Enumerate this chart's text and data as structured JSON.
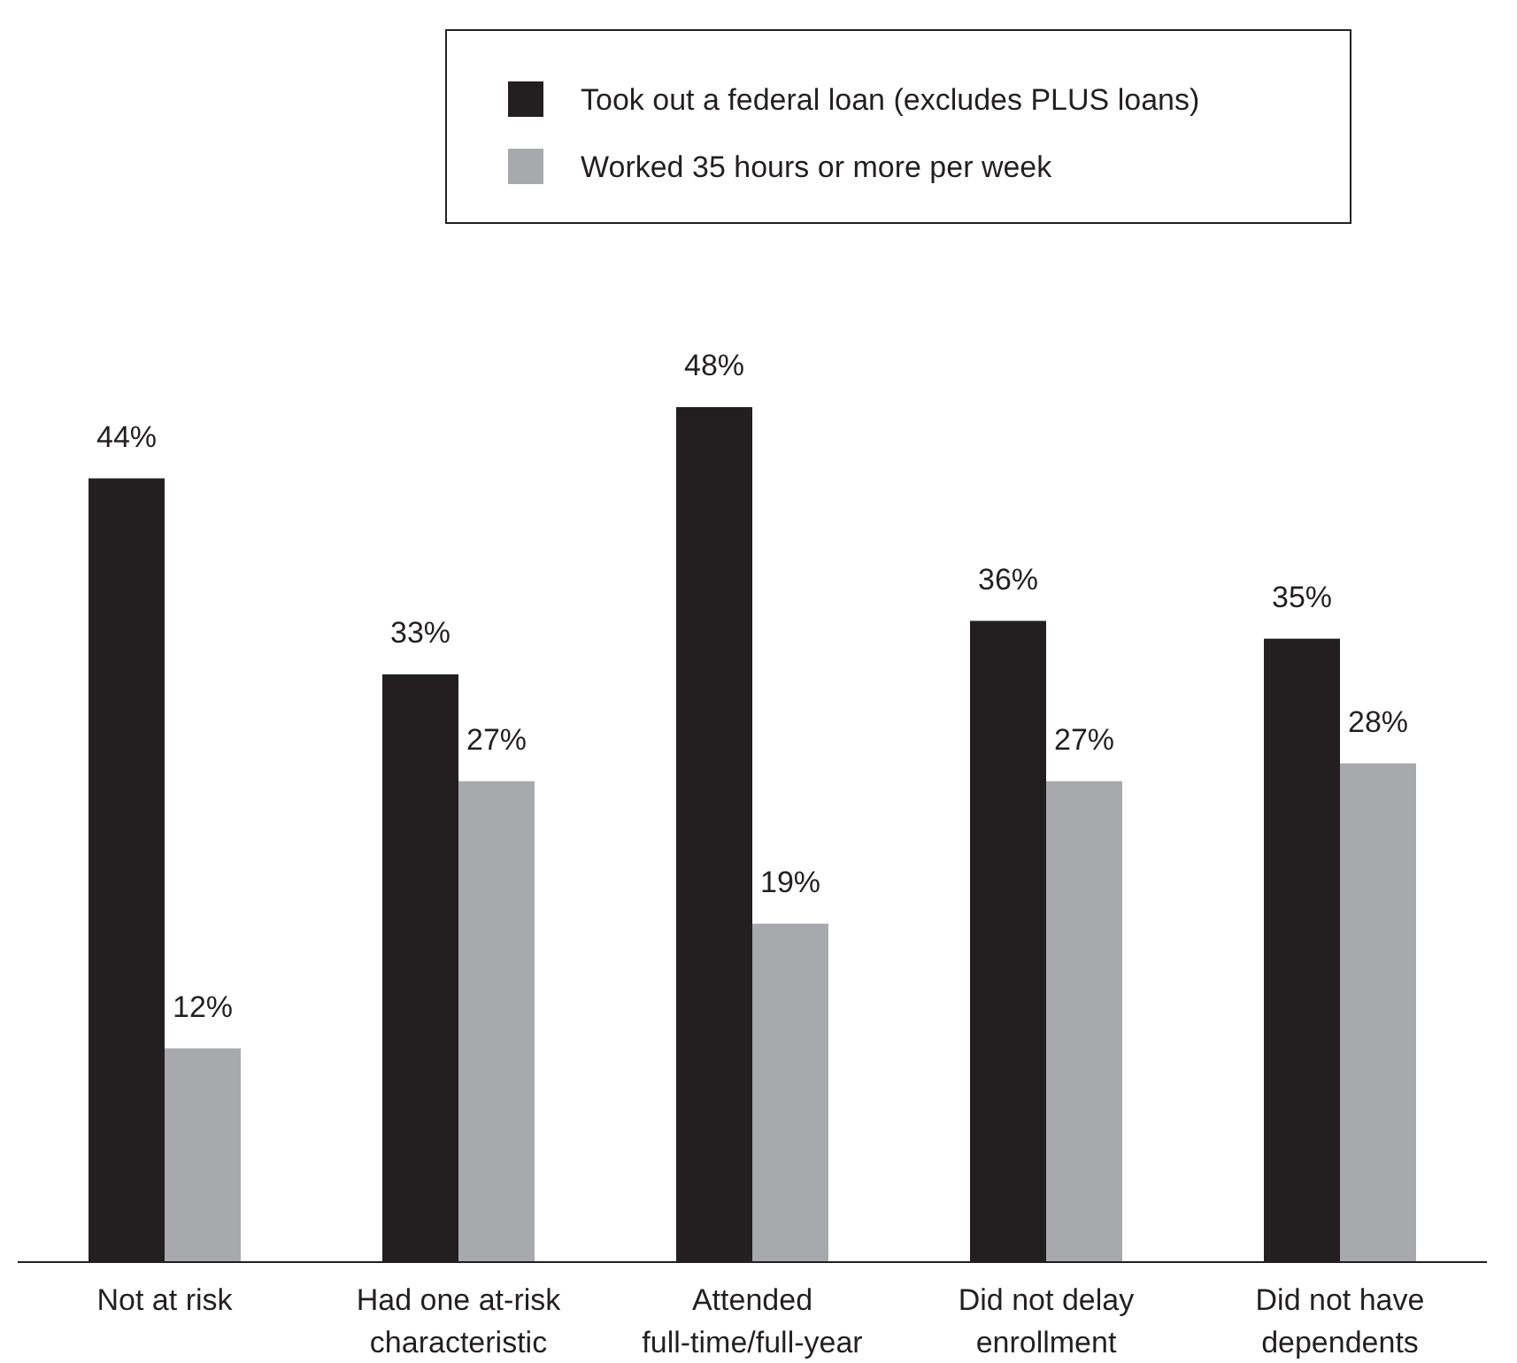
{
  "chart_data": {
    "type": "bar",
    "categories": [
      "Not at risk",
      "Had one at-risk characteristic",
      "Attended full-time/full-year",
      "Did not delay enrollment",
      "Did not have dependents"
    ],
    "series": [
      {
        "name": "Took out a federal loan (excludes PLUS loans)",
        "color": "#231f20",
        "values": [
          44,
          33,
          48,
          36,
          35
        ],
        "value_labels": [
          "44%",
          "33%",
          "48%",
          "36%",
          "35%"
        ]
      },
      {
        "name": "Worked 35 hours or more per week",
        "color": "#a7a9ac",
        "values": [
          12,
          27,
          19,
          27,
          28
        ],
        "value_labels": [
          "12%",
          "27%",
          "19%",
          "27%",
          "28%"
        ]
      }
    ],
    "legend": "top"
  }
}
